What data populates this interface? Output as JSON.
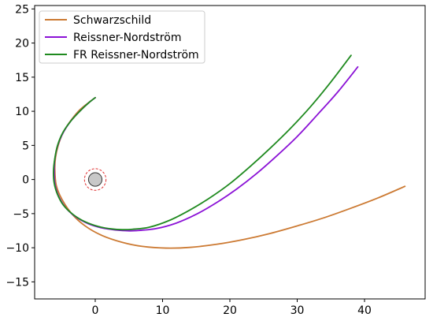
{
  "chart_data": {
    "type": "line",
    "title": "",
    "xlabel": "",
    "ylabel": "",
    "xlim": [
      -9,
      49
    ],
    "ylim": [
      -17.5,
      25.5
    ],
    "x_ticks": [
      0,
      10,
      20,
      30,
      40
    ],
    "y_ticks": [
      -15,
      -10,
      -5,
      0,
      5,
      10,
      15,
      20,
      25
    ],
    "grid": false,
    "legend": "upper-left",
    "series": [
      {
        "name": "Schwarzschild",
        "color": "#cc7a33",
        "x": [
          46.0,
          42.0,
          38.0,
          34.0,
          30.0,
          26.0,
          22.0,
          18.0,
          14.0,
          10.5,
          7.0,
          4.0,
          1.0,
          -1.5,
          -3.5,
          -5.0,
          -5.8,
          -6.0,
          -5.9,
          -5.5,
          -4.8,
          -3.8,
          -2.5,
          -1.2,
          0.0
        ],
        "y": [
          -1.0,
          -2.7,
          -4.2,
          -5.6,
          -6.8,
          -7.9,
          -8.8,
          -9.5,
          -9.95,
          -10.05,
          -9.8,
          -9.2,
          -8.2,
          -6.8,
          -5.0,
          -2.8,
          -0.8,
          1.5,
          3.2,
          5.0,
          6.8,
          8.4,
          10.0,
          11.1,
          12.0
        ]
      },
      {
        "name": "Reissner-Nordström",
        "color": "#8b12d6",
        "x": [
          39.0,
          36.0,
          33.0,
          30.0,
          27.0,
          24.0,
          21.0,
          18.0,
          15.0,
          12.0,
          9.0,
          6.0,
          4.5,
          3.0,
          1.0,
          -1.0,
          -3.0,
          -4.5,
          -5.5,
          -6.0,
          -6.1,
          -6.0,
          -5.6,
          -4.8,
          -3.6,
          -2.2,
          -0.9,
          0.0
        ],
        "y": [
          16.5,
          12.8,
          9.5,
          6.3,
          3.5,
          0.9,
          -1.4,
          -3.4,
          -5.1,
          -6.4,
          -7.2,
          -7.5,
          -7.5,
          -7.4,
          -7.1,
          -6.5,
          -5.4,
          -4.0,
          -2.3,
          -0.6,
          1.2,
          3.0,
          4.9,
          6.8,
          8.6,
          10.1,
          11.3,
          12.0
        ]
      },
      {
        "name": "FR Reissner-Nordström",
        "color": "#1f8a1f",
        "x": [
          38.0,
          35.0,
          32.0,
          29.0,
          26.0,
          23.0,
          20.0,
          17.0,
          14.0,
          11.0,
          8.0,
          5.5,
          4.0,
          2.5,
          0.5,
          -1.5,
          -3.2,
          -4.7,
          -5.6,
          -6.1,
          -6.2,
          -6.0,
          -5.6,
          -4.8,
          -3.6,
          -2.2,
          -0.9,
          0.0
        ],
        "y": [
          18.2,
          14.3,
          10.7,
          7.5,
          4.6,
          1.9,
          -0.6,
          -2.7,
          -4.5,
          -6.0,
          -7.0,
          -7.3,
          -7.35,
          -7.25,
          -6.9,
          -6.2,
          -5.2,
          -3.8,
          -2.2,
          -0.5,
          1.3,
          3.1,
          5.0,
          6.9,
          8.6,
          10.1,
          11.3,
          12.0
        ]
      }
    ],
    "object": {
      "center": [
        0,
        0
      ],
      "radius": 1.0,
      "fill": "#c8c8c8",
      "stroke": "#333333",
      "ring_radius": 1.6,
      "ring_color": "#e03030"
    }
  }
}
